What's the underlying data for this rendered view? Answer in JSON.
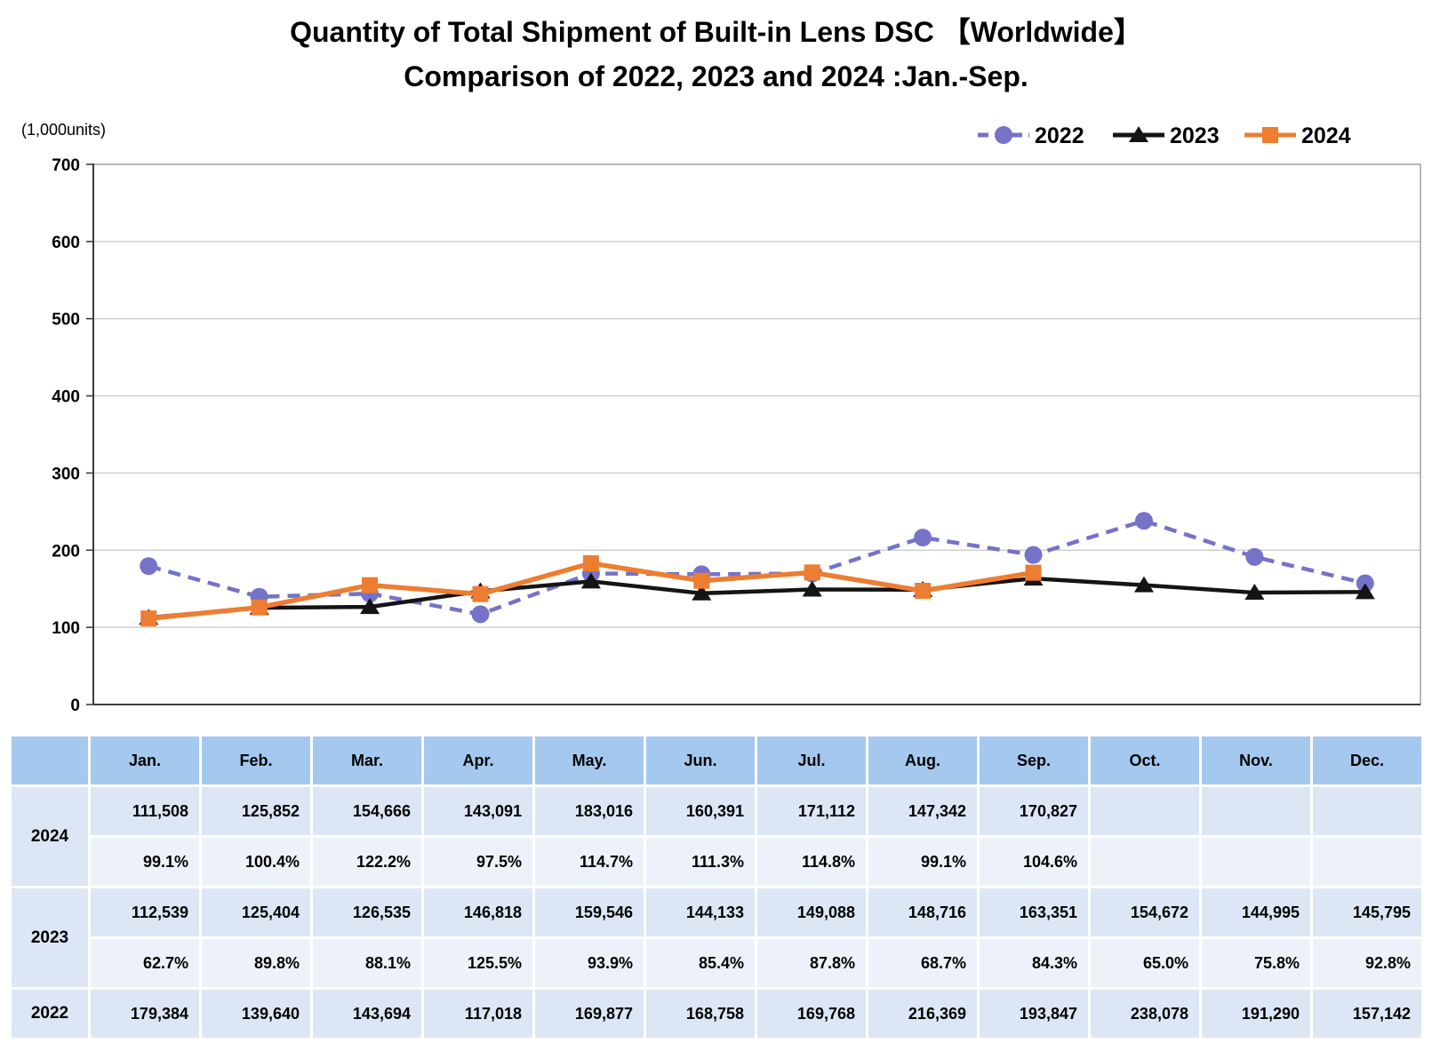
{
  "title": {
    "line1": "Quantity of Total Shipment of Built-in Lens DSC 【Worldwide】",
    "line2": "Comparison of 2022, 2023 and 2024 :Jan.-Sep."
  },
  "chart_data": {
    "type": "line",
    "title": "Quantity of Total Shipment of Built-in Lens DSC 【Worldwide】 Comparison of 2022, 2023 and 2024 :Jan.-Sep.",
    "unit_label": "(1,000units)",
    "x_categories": [
      "Jan.",
      "Feb.",
      "Mar.",
      "Apr.",
      "May.",
      "Jun.",
      "Jul.",
      "Aug.",
      "Sep.",
      "Oct.",
      "Nov.",
      "Dec."
    ],
    "ylim": [
      0,
      700
    ],
    "ytick_interval": 100,
    "grid": "horizontal gridlines every 100",
    "legend_position": "top-right",
    "values_unit": "1,000 units",
    "series": [
      {
        "name": "2022",
        "color": "#7473C8",
        "line_style": "dashed",
        "marker": "circle",
        "values": [
          179.384,
          139.64,
          143.694,
          117.018,
          169.877,
          168.758,
          169.768,
          216.369,
          193.847,
          238.078,
          191.29,
          157.142
        ]
      },
      {
        "name": "2023",
        "color": "#141414",
        "line_style": "solid",
        "marker": "triangle",
        "values": [
          112.539,
          125.404,
          126.535,
          146.818,
          159.546,
          144.133,
          149.088,
          148.716,
          163.351,
          154.672,
          144.995,
          145.795
        ]
      },
      {
        "name": "2024",
        "color": "#ED7D31",
        "line_style": "solid",
        "marker": "square",
        "values": [
          111.508,
          125.852,
          154.666,
          143.091,
          183.016,
          160.391,
          171.112,
          147.342,
          170.827
        ]
      }
    ]
  },
  "table": {
    "months": [
      "Jan.",
      "Feb.",
      "Mar.",
      "Apr.",
      "May.",
      "Jun.",
      "Jul.",
      "Aug.",
      "Sep.",
      "Oct.",
      "Nov.",
      "Dec."
    ],
    "groups": [
      {
        "year": "2024",
        "shipments": [
          "111,508",
          "125,852",
          "154,666",
          "143,091",
          "183,016",
          "160,391",
          "171,112",
          "147,342",
          "170,827",
          "",
          "",
          ""
        ],
        "yoy": [
          "99.1%",
          "100.4%",
          "122.2%",
          "97.5%",
          "114.7%",
          "111.3%",
          "114.8%",
          "99.1%",
          "104.6%",
          "",
          "",
          ""
        ]
      },
      {
        "year": "2023",
        "shipments": [
          "112,539",
          "125,404",
          "126,535",
          "146,818",
          "159,546",
          "144,133",
          "149,088",
          "148,716",
          "163,351",
          "154,672",
          "144,995",
          "145,795"
        ],
        "yoy": [
          "62.7%",
          "89.8%",
          "88.1%",
          "125.5%",
          "93.9%",
          "85.4%",
          "87.8%",
          "68.7%",
          "84.3%",
          "65.0%",
          "75.8%",
          "92.8%"
        ]
      },
      {
        "year": "2022",
        "shipments": [
          "179,384",
          "139,640",
          "143,694",
          "117,018",
          "169,877",
          "168,758",
          "169,768",
          "216,369",
          "193,847",
          "238,078",
          "191,290",
          "157,142"
        ],
        "yoy": null
      }
    ],
    "colors": {
      "header_bg": "#A5C8EF",
      "value_row_bg": "#DCE6F5",
      "percent_row_bg": "#EDF2FA"
    }
  }
}
